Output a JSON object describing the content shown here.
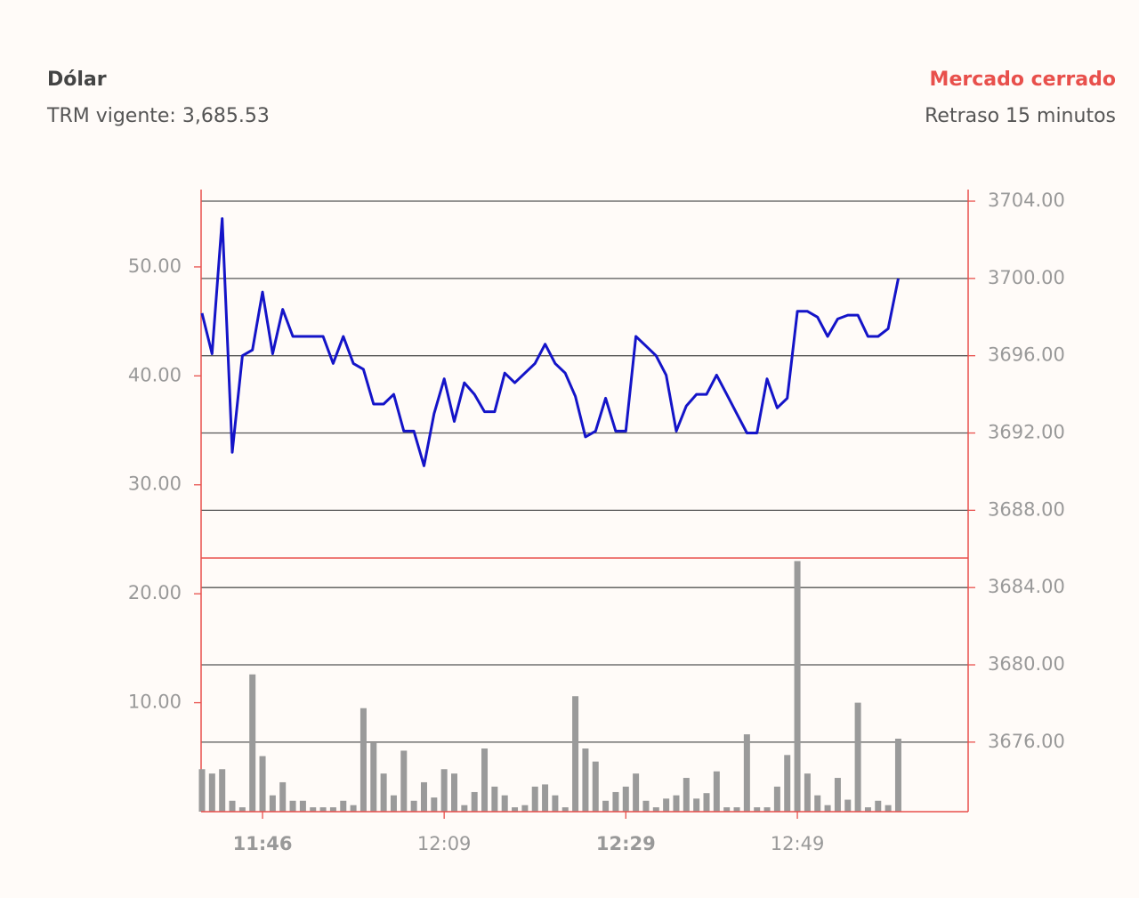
{
  "header": {
    "title": "Dólar",
    "subtitle": "TRM vigente: 3,685.53",
    "status": "Mercado cerrado",
    "delay": "Retraso 15 minutos"
  },
  "chart_data": {
    "type": "combo",
    "categories": [
      null,
      null,
      null,
      null,
      null,
      null,
      "11:46",
      null,
      null,
      null,
      null,
      null,
      null,
      null,
      null,
      null,
      null,
      null,
      null,
      null,
      null,
      null,
      null,
      null,
      "12:09",
      null,
      null,
      null,
      null,
      null,
      null,
      null,
      null,
      null,
      null,
      null,
      null,
      null,
      null,
      null,
      null,
      null,
      "12:29",
      null,
      null,
      null,
      null,
      null,
      null,
      null,
      null,
      null,
      null,
      null,
      null,
      null,
      null,
      null,
      null,
      "12:49",
      null,
      null,
      null,
      null,
      null,
      null,
      null,
      null,
      null,
      null
    ],
    "series": [
      {
        "type": "bar",
        "color": "#9a9a9a",
        "values": [
          3.9,
          3.5,
          3.9,
          1.0,
          0.4,
          12.6,
          5.1,
          1.5,
          2.7,
          1.0,
          1.0,
          0.4,
          0.4,
          0.4,
          1.0,
          0.6,
          9.5,
          6.3,
          3.5,
          1.5,
          5.6,
          1.0,
          2.7,
          1.3,
          3.9,
          3.5,
          0.6,
          1.8,
          5.8,
          2.3,
          1.5,
          0.4,
          0.6,
          2.3,
          2.5,
          1.5,
          0.4,
          10.6,
          5.8,
          4.6,
          1.0,
          1.8,
          2.3,
          3.5,
          1.0,
          0.4,
          1.2,
          1.5,
          3.1,
          1.2,
          1.7,
          3.7,
          0.4,
          0.4,
          7.1,
          0.4,
          0.4,
          2.3,
          5.2,
          23.0,
          3.5,
          1.5,
          0.6,
          3.1,
          1.1,
          10.0,
          0.4,
          1.0,
          0.6,
          6.7
        ]
      },
      {
        "type": "line",
        "color": "#1414c8",
        "axis": "y2",
        "values": [
          3698.2,
          3696.1,
          3703.1,
          3691.0,
          3696.0,
          3696.3,
          3699.3,
          3696.1,
          3698.4,
          3697.0,
          3697.0,
          3697.0,
          3697.0,
          3695.6,
          3697.0,
          3695.6,
          3695.3,
          3693.5,
          3693.5,
          3694.0,
          3692.1,
          3692.1,
          3690.3,
          3693.0,
          3694.8,
          3692.6,
          3694.6,
          3694.0,
          3693.1,
          3693.1,
          3695.1,
          3694.6,
          3695.1,
          3695.6,
          3696.6,
          3695.6,
          3695.1,
          3693.9,
          3691.8,
          3692.1,
          3693.8,
          3692.1,
          3692.1,
          3697.0,
          3696.5,
          3696.0,
          3695.0,
          3692.1,
          3693.4,
          3694.0,
          3694.0,
          3695.0,
          3694.0,
          3693.0,
          3692.0,
          3692.0,
          3694.8,
          3693.3,
          3693.8,
          3698.3,
          3698.3,
          3698.0,
          3697.0,
          3697.9,
          3698.1,
          3698.1,
          3697.0,
          3697.0,
          3697.4,
          3700.0
        ]
      }
    ],
    "ylim": [
      0,
      57.1
    ],
    "yticks": [
      {
        "value": 10,
        "label": "10.00"
      },
      {
        "value": 20,
        "label": "20.00"
      },
      {
        "value": 30,
        "label": "30.00"
      },
      {
        "value": 40,
        "label": "40.00"
      },
      {
        "value": 50,
        "label": "50.00"
      }
    ],
    "y2lim": [
      3672.4,
      3704.6
    ],
    "y2ticks": [
      {
        "value": 3676,
        "label": "3676.00"
      },
      {
        "value": 3680,
        "label": "3680.00"
      },
      {
        "value": 3684,
        "label": "3684.00"
      },
      {
        "value": 3688,
        "label": "3688.00"
      },
      {
        "value": 3692,
        "label": "3692.00"
      },
      {
        "value": 3696,
        "label": "3696.00"
      },
      {
        "value": 3700,
        "label": "3700.00"
      },
      {
        "value": 3704,
        "label": "3704.00"
      }
    ],
    "grid": true,
    "axis_color": "#e8504c"
  }
}
